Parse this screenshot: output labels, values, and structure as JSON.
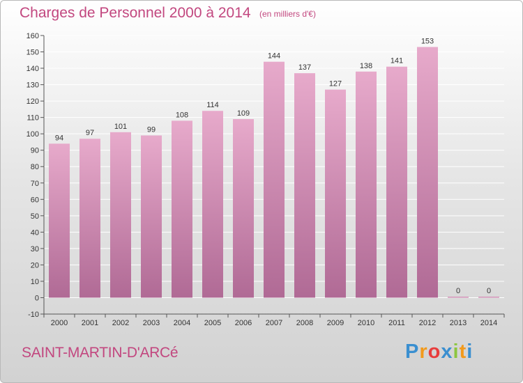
{
  "header": {
    "title": "Charges de Personnel 2000 à 2014",
    "subtitle": "(en milliers d'€)"
  },
  "footer": {
    "location": "SAINT-MARTIN-D'ARCé",
    "logo": {
      "letters": [
        "P",
        "r",
        "o",
        "x",
        "i",
        "t",
        "i"
      ],
      "colors": [
        "#3a8fd0",
        "#f29a1c",
        "#e83d3d",
        "#3a8fd0",
        "#8cc63f",
        "#f29a1c",
        "#3a8fd0"
      ]
    }
  },
  "colors": {
    "bar_top": "#e7aacb",
    "bar_bottom": "#b06a95",
    "text_accent": "#c2477f"
  },
  "chart_data": {
    "type": "bar",
    "categories": [
      "2000",
      "2001",
      "2002",
      "2003",
      "2004",
      "2005",
      "2006",
      "2007",
      "2008",
      "2009",
      "2010",
      "2011",
      "2012",
      "2013",
      "2014"
    ],
    "values": [
      94,
      97,
      101,
      99,
      108,
      114,
      109,
      144,
      137,
      127,
      138,
      141,
      153,
      0,
      0
    ],
    "ylim": [
      -10,
      160
    ],
    "yticks": [
      -10,
      0,
      10,
      20,
      30,
      40,
      50,
      60,
      70,
      80,
      90,
      100,
      110,
      120,
      130,
      140,
      150,
      160
    ],
    "grid": true,
    "legend": "none"
  }
}
